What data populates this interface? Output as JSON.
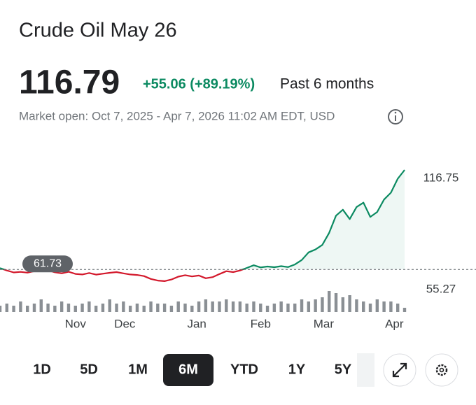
{
  "header": {
    "title": "Crude Oil May 26",
    "price": 116.79,
    "change": "+55.06 (+89.19%)",
    "period": "Past 6 months",
    "market_info": "Market open: Oct 7, 2025 - Apr 7, 2026 11:02 AM EDT, USD"
  },
  "chart_data": {
    "type": "line",
    "color": "#0b8a61",
    "below_color": "#d3182b",
    "values": [
      62.5,
      61.2,
      60.1,
      60.4,
      60.0,
      60.8,
      61.5,
      61.3,
      60.2,
      59.6,
      60.5,
      59.3,
      59.0,
      59.8,
      58.9,
      59.4,
      59.9,
      60.3,
      59.6,
      59.0,
      58.7,
      58.1,
      56.5,
      55.6,
      55.3,
      56.2,
      57.8,
      58.6,
      57.9,
      58.4,
      56.9,
      57.5,
      59.2,
      60.8,
      60.3,
      61.2,
      62.6,
      64.1,
      62.9,
      63.4,
      63.0,
      63.6,
      63.1,
      64.5,
      67.0,
      71.2,
      72.8,
      75.3,
      82.0,
      91.5,
      94.8,
      89.6,
      96.3,
      98.7,
      90.8,
      93.5,
      100.4,
      104.2,
      111.9,
      116.75
    ],
    "volume": [
      3,
      4,
      3,
      5,
      3,
      4,
      6,
      4,
      3,
      5,
      4,
      3,
      4,
      5,
      3,
      4,
      6,
      4,
      5,
      3,
      4,
      3,
      5,
      4,
      4,
      3,
      5,
      4,
      3,
      5,
      6,
      5,
      5,
      6,
      5,
      5,
      4,
      5,
      4,
      3,
      4,
      5,
      4,
      4,
      6,
      5,
      6,
      7,
      10,
      9,
      7,
      8,
      6,
      5,
      4,
      6,
      5,
      5,
      4,
      2
    ],
    "previous_close": 61.73,
    "xlim": [
      0,
      59
    ],
    "xticks": [
      {
        "value": 11,
        "label": "Nov"
      },
      {
        "value": 18.2,
        "label": "Dec"
      },
      {
        "value": 28.7,
        "label": "Jan"
      },
      {
        "value": 38,
        "label": "Feb"
      },
      {
        "value": 47.2,
        "label": "Mar"
      },
      {
        "value": 57.5,
        "label": "Apr"
      }
    ],
    "ylim": [
      55.27,
      116.75
    ],
    "yticks": [
      55.27,
      116.75
    ]
  },
  "ranges": {
    "options": [
      "1D",
      "5D",
      "1M",
      "6M",
      "YTD",
      "1Y",
      "5Y"
    ],
    "selected": 3
  }
}
